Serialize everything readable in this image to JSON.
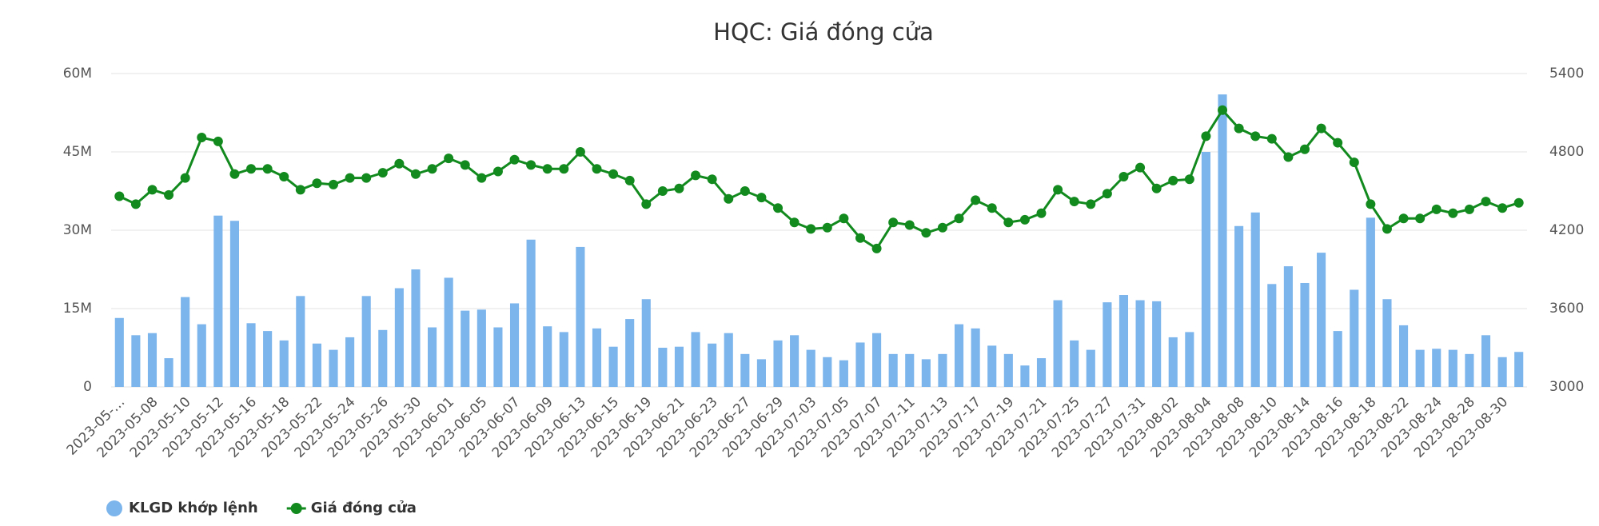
{
  "chart_data": {
    "type": "bar",
    "title": "HQC: Giá đóng cửa",
    "categories": [
      "2023-05-…",
      null,
      "2023-05-08",
      null,
      "2023-05-10",
      null,
      "2023-05-12",
      null,
      "2023-05-16",
      null,
      "2023-05-18",
      null,
      "2023-05-22",
      null,
      "2023-05-24",
      null,
      "2023-05-26",
      null,
      "2023-05-30",
      null,
      "2023-06-01",
      null,
      "2023-06-05",
      null,
      "2023-06-07",
      null,
      "2023-06-09",
      null,
      "2023-06-13",
      null,
      "2023-06-15",
      null,
      "2023-06-19",
      null,
      "2023-06-21",
      null,
      "2023-06-23",
      null,
      "2023-06-27",
      null,
      "2023-06-29",
      null,
      "2023-07-03",
      null,
      "2023-07-05",
      null,
      "2023-07-07",
      null,
      "2023-07-11",
      null,
      "2023-07-13",
      null,
      "2023-07-17",
      null,
      "2023-07-19",
      null,
      "2023-07-21",
      null,
      "2023-07-25",
      null,
      "2023-07-27",
      null,
      "2023-07-31",
      null,
      "2023-08-02",
      null,
      "2023-08-04",
      null,
      "2023-08-08",
      null,
      "2023-08-10",
      null,
      "2023-08-14",
      null,
      "2023-08-16",
      null,
      "2023-08-18",
      null,
      "2023-08-22",
      null,
      "2023-08-24",
      null,
      "2023-08-28",
      null,
      "2023-08-30",
      null
    ],
    "series": [
      {
        "name": "KLGD khớp lệnh",
        "type": "bar",
        "color": "#7cb5ec",
        "values": [
          13200000,
          9900000,
          10300000,
          5500000,
          17200000,
          12000000,
          32800000,
          31800000,
          12200000,
          10700000,
          8900000,
          17400000,
          8300000,
          7100000,
          9500000,
          17400000,
          10900000,
          18900000,
          22500000,
          11400000,
          20900000,
          14600000,
          14800000,
          11400000,
          16000000,
          28200000,
          11600000,
          10500000,
          26800000,
          11200000,
          7700000,
          13000000,
          16800000,
          7500000,
          7700000,
          10500000,
          8300000,
          10300000,
          6300000,
          5300000,
          8900000,
          9900000,
          7100000,
          5700000,
          5100000,
          8500000,
          10300000,
          6300000,
          6300000,
          5300000,
          6300000,
          12000000,
          11200000,
          7900000,
          6300000,
          4100000,
          5500000,
          16600000,
          8900000,
          7100000,
          16200000,
          17600000,
          16600000,
          16400000,
          9500000,
          10500000,
          45000000,
          56000000,
          30800000,
          33400000,
          19700000,
          23100000,
          19900000,
          25700000,
          10700000,
          18600000,
          32400000,
          16800000,
          11800000,
          7100000,
          7300000,
          7100000,
          6300000,
          9900000,
          5700000,
          6700000
        ]
      },
      {
        "name": "Giá đóng cửa",
        "type": "line",
        "axis": "y2",
        "color": "#128a1e",
        "values": [
          4460,
          4400,
          4510,
          4470,
          4600,
          4910,
          4880,
          4630,
          4670,
          4670,
          4610,
          4510,
          4560,
          4550,
          4600,
          4600,
          4640,
          4710,
          4630,
          4670,
          4750,
          4700,
          4600,
          4650,
          4740,
          4700,
          4670,
          4670,
          4800,
          4670,
          4630,
          4580,
          4400,
          4500,
          4520,
          4620,
          4590,
          4440,
          4500,
          4450,
          4370,
          4260,
          4210,
          4220,
          4290,
          4140,
          4060,
          4260,
          4240,
          4180,
          4220,
          4290,
          4430,
          4370,
          4260,
          4280,
          4330,
          4510,
          4420,
          4400,
          4480,
          4610,
          4680,
          4520,
          4580,
          4590,
          4920,
          5120,
          4980,
          4920,
          4900,
          4760,
          4820,
          4980,
          4870,
          4720,
          4400,
          4210,
          4290,
          4290,
          4360,
          4330,
          4360,
          4420,
          4370,
          4410
        ]
      }
    ],
    "ylim": [
      0,
      60000000
    ],
    "yticks": [
      0,
      {
        "value": 15000000,
        "label": "15M"
      },
      {
        "value": 30000000,
        "label": "30M"
      },
      {
        "value": 45000000,
        "label": "45M"
      },
      {
        "value": 60000000,
        "label": "60M"
      }
    ],
    "y2lim": [
      3000,
      5400
    ],
    "y2ticks": [
      3000,
      3600,
      4200,
      4800,
      5400
    ],
    "grid": true,
    "legend": "bottom-left"
  }
}
